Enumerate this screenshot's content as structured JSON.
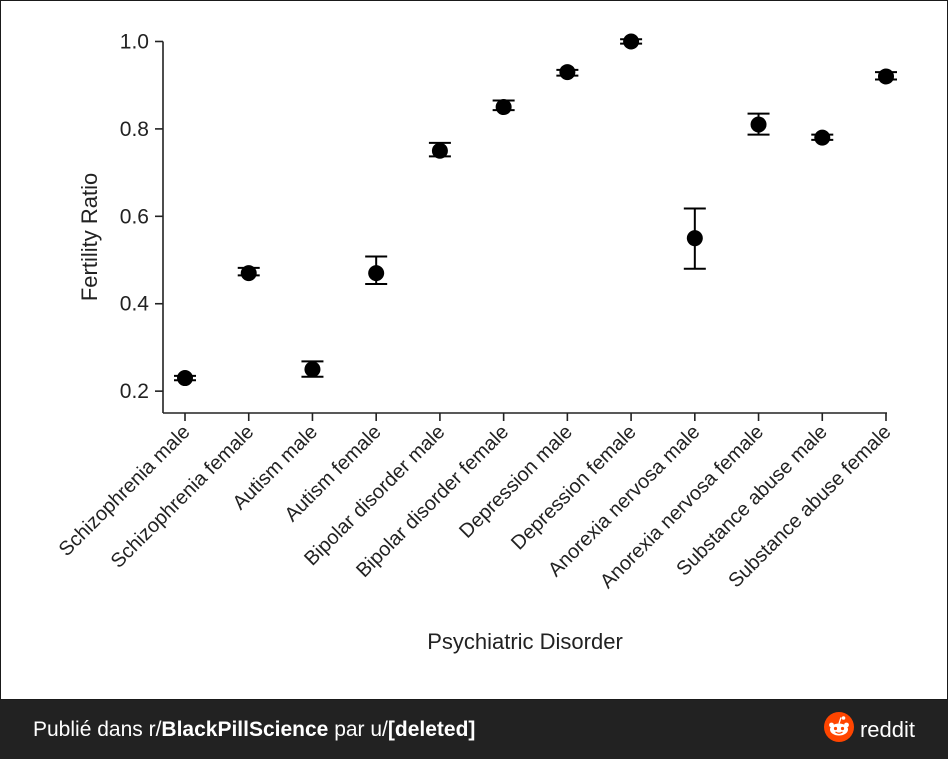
{
  "chart_data": {
    "type": "scatter",
    "title": "",
    "xlabel": "Psychiatric Disorder",
    "ylabel": "Fertility Ratio",
    "ylim": [
      0.15,
      1.04
    ],
    "yticks": [
      "0.2",
      "0.4",
      "0.6",
      "0.8",
      "1.0"
    ],
    "grid": false,
    "categories": [
      "Schizophrenia male",
      "Schizophrenia female",
      "Autism male",
      "Autism female",
      "Bipolar disorder male",
      "Bipolar disorder female",
      "Depression male",
      "Depression female",
      "Anorexia nervosa male",
      "Anorexia nervosa female",
      "Substance abuse male",
      "Substance abuse female"
    ],
    "values": [
      0.23,
      0.47,
      0.25,
      0.47,
      0.75,
      0.85,
      0.93,
      1.0,
      0.55,
      0.81,
      0.78,
      0.92
    ],
    "error_low": [
      0.225,
      0.465,
      0.233,
      0.445,
      0.737,
      0.843,
      0.922,
      0.995,
      0.48,
      0.787,
      0.775,
      0.913
    ],
    "error_high": [
      0.235,
      0.482,
      0.268,
      0.508,
      0.768,
      0.865,
      0.935,
      1.005,
      0.618,
      0.835,
      0.787,
      0.93
    ],
    "marker_color": "#000000"
  },
  "footer": {
    "prefix": "Publié dans r/",
    "subreddit": "BlackPillScience",
    "middle": " par u/",
    "user": "[deleted]",
    "brand_label": "reddit",
    "brand_icon": "reddit-icon",
    "background": "#222222",
    "brand_color": "#ff4500"
  }
}
